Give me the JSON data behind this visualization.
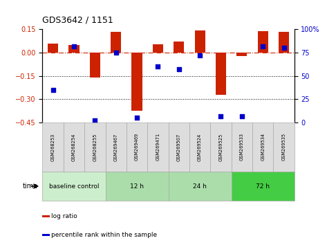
{
  "title": "GDS3642 / 1151",
  "samples": [
    "GSM268253",
    "GSM268254",
    "GSM268255",
    "GSM269467",
    "GSM269469",
    "GSM269471",
    "GSM269507",
    "GSM269524",
    "GSM269525",
    "GSM269533",
    "GSM269534",
    "GSM269535"
  ],
  "log_ratio": [
    0.06,
    0.05,
    -0.16,
    0.135,
    -0.375,
    0.055,
    0.07,
    0.145,
    -0.27,
    -0.02,
    0.14,
    0.135
  ],
  "percentile_rank": [
    35,
    82,
    2,
    75,
    5,
    60,
    57,
    72,
    7,
    7,
    82,
    80
  ],
  "bar_color": "#cc2200",
  "dot_color": "#0000cc",
  "ylim_left": [
    -0.45,
    0.15
  ],
  "ylim_right": [
    0,
    100
  ],
  "yticks_left": [
    0.15,
    0,
    -0.15,
    -0.3,
    -0.45
  ],
  "yticks_right": [
    100,
    75,
    50,
    25,
    0
  ],
  "hline_y": 0,
  "dotted_lines": [
    -0.15,
    -0.3
  ],
  "bar_width": 0.5,
  "groups": [
    {
      "label": "baseline control",
      "start": 0,
      "end": 3,
      "color": "#cceecc"
    },
    {
      "label": "12 h",
      "start": 3,
      "end": 6,
      "color": "#aaddaa"
    },
    {
      "label": "24 h",
      "start": 6,
      "end": 9,
      "color": "#aaddaa"
    },
    {
      "label": "72 h",
      "start": 9,
      "end": 12,
      "color": "#44cc44"
    }
  ],
  "sample_box_color": "#dddddd",
  "sample_box_edge_color": "#aaaaaa",
  "time_label": "time",
  "legend_items": [
    {
      "label": "log ratio",
      "color": "#cc2200"
    },
    {
      "label": "percentile rank within the sample",
      "color": "#0000cc"
    }
  ]
}
